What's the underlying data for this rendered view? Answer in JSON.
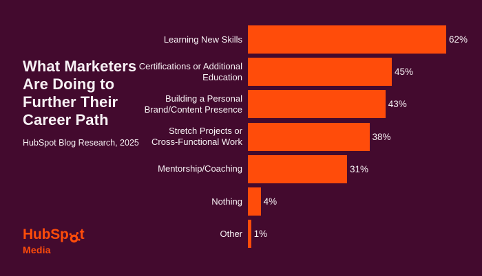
{
  "colors": {
    "background": "#430A2E",
    "accent": "#FF4C0A",
    "text": "#F7F1F4"
  },
  "left_panel": {
    "title": "What Marketers Are Doing to Further Their Career Path",
    "subtitle": "HubSpot Blog Research, 2025"
  },
  "logo": {
    "brand_full": "HubSpot",
    "brand_prefix": "HubSp",
    "brand_suffix": "t",
    "media_label": "Media",
    "sprocket_icon": "hubspot-sprocket-icon"
  },
  "chart_data": {
    "type": "bar",
    "orientation": "horizontal",
    "title": "What Marketers Are Doing to Further Their Career Path",
    "source_note": "HubSpot Blog Research, 2025",
    "categories": [
      "Learning New Skills",
      "Certifications or Additional Education",
      "Building a Personal Brand/Content Presence",
      "Stretch Projects or Cross-Functional Work",
      "Mentorship/Coaching",
      "Nothing",
      "Other"
    ],
    "categories_display": [
      "Learning New Skills",
      "Certifications or Additional\nEducation",
      "Building a Personal\nBrand/Content Presence",
      "Stretch Projects or\nCross-Functional Work",
      "Mentorship/Coaching",
      "Nothing",
      "Other"
    ],
    "values": [
      62,
      45,
      43,
      38,
      31,
      4,
      1
    ],
    "value_labels": [
      "62%",
      "45%",
      "43%",
      "38%",
      "31%",
      "4%",
      "1%"
    ],
    "unit": "%",
    "xlim": [
      0,
      62
    ],
    "grid": false,
    "legend": false,
    "bar_color": "#FF4C0A",
    "label_color": "#F7F1F4",
    "background_color": "#430A2E"
  }
}
